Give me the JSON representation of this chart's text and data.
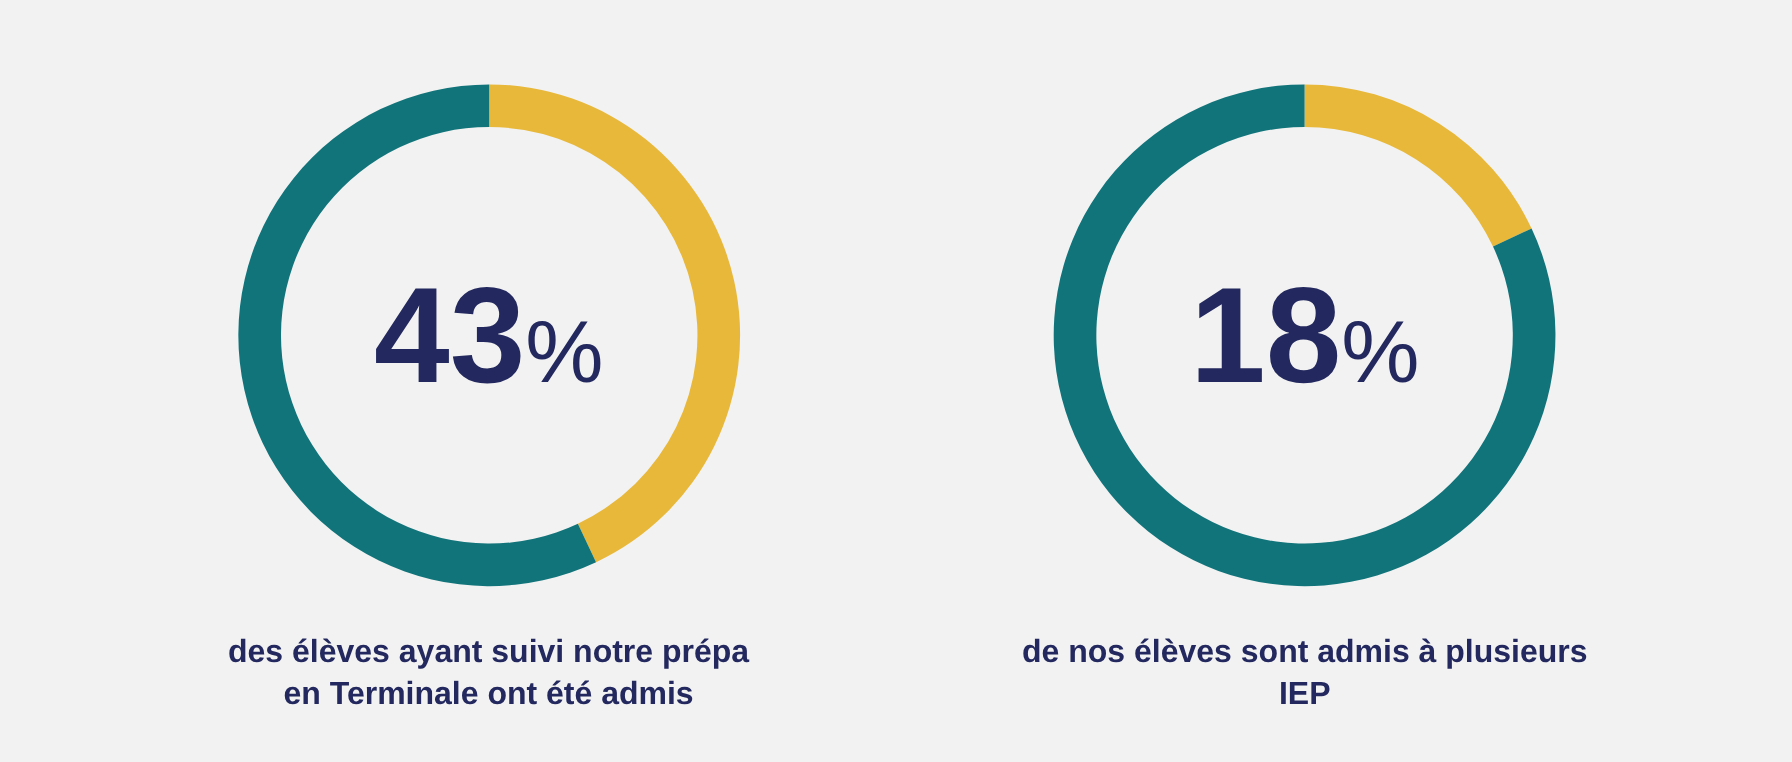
{
  "chart_data": [
    {
      "type": "donut",
      "categories": [
        null,
        null
      ],
      "values": [
        43,
        57
      ],
      "colors": [
        "#e8b83a",
        "#11747a"
      ],
      "legend": false,
      "annotations": [
        "43%",
        "des élèves ayant suivi notre prépa en Terminale ont été admis"
      ]
    },
    {
      "type": "donut",
      "categories": [
        null,
        null
      ],
      "values": [
        18,
        82
      ],
      "colors": [
        "#e8b83a",
        "#11747a"
      ],
      "legend": false,
      "annotations": [
        "18%",
        "de nos élèves sont admis à plusieurs IEP"
      ]
    }
  ]
}
